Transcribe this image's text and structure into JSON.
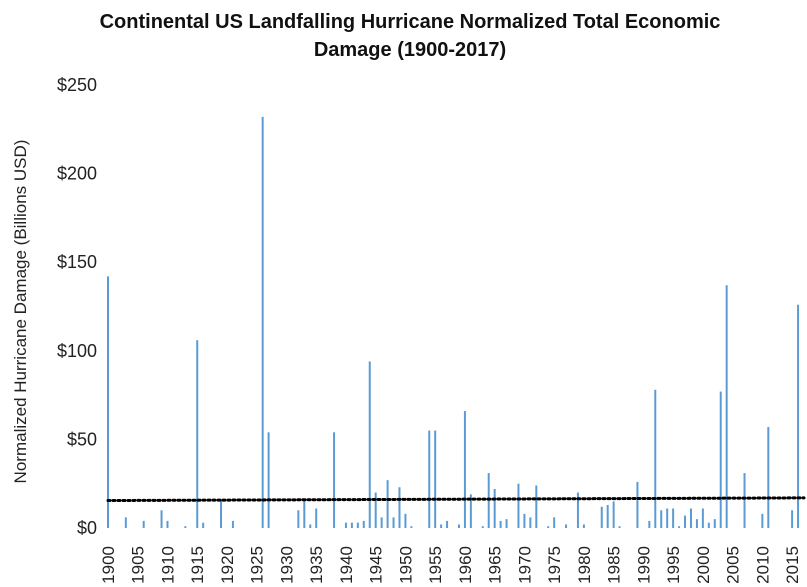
{
  "chart_data": {
    "type": "bar",
    "title_line1": "Continental US Landfalling Hurricane Normalized Total Economic",
    "title_line2": "Damage  (1900-2017)",
    "xlabel": "",
    "ylabel": "Normalized Hurricane Damage (Billions USD)",
    "ylim": [
      0,
      250
    ],
    "xlim": [
      1900,
      2017
    ],
    "yticks": [
      0,
      50,
      100,
      150,
      200,
      250
    ],
    "ytick_labels": [
      "$0",
      "$50",
      "$100",
      "$150",
      "$200",
      "$250"
    ],
    "xticks": [
      1900,
      1905,
      1910,
      1915,
      1920,
      1925,
      1930,
      1935,
      1940,
      1945,
      1950,
      1955,
      1960,
      1965,
      1970,
      1975,
      1980,
      1985,
      1990,
      1995,
      2000,
      2005,
      2010,
      2015
    ],
    "xtick_labels": [
      "1900",
      "1905",
      "1910",
      "1915",
      "1920",
      "1925",
      "1930",
      "1935",
      "1940",
      "1945",
      "1950",
      "1955",
      "1960",
      "1965",
      "1970",
      "1975",
      "1980",
      "1985",
      "1990",
      "1995",
      "2000",
      "2005",
      "2010",
      "2015"
    ],
    "bar_color": "#5b9bd5",
    "trendline": {
      "style": "dotted",
      "color": "#000000",
      "start": [
        1900,
        15.5
      ],
      "end": [
        2017,
        17
      ]
    },
    "grid": false,
    "legend": "none",
    "x": [
      1900,
      1901,
      1902,
      1903,
      1904,
      1905,
      1906,
      1907,
      1908,
      1909,
      1910,
      1911,
      1912,
      1913,
      1914,
      1915,
      1916,
      1917,
      1918,
      1919,
      1920,
      1921,
      1922,
      1923,
      1924,
      1925,
      1926,
      1927,
      1928,
      1929,
      1930,
      1931,
      1932,
      1933,
      1934,
      1935,
      1936,
      1937,
      1938,
      1939,
      1940,
      1941,
      1942,
      1943,
      1944,
      1945,
      1946,
      1947,
      1948,
      1949,
      1950,
      1951,
      1952,
      1953,
      1954,
      1955,
      1956,
      1957,
      1958,
      1959,
      1960,
      1961,
      1962,
      1963,
      1964,
      1965,
      1966,
      1967,
      1968,
      1969,
      1970,
      1971,
      1972,
      1973,
      1974,
      1975,
      1976,
      1977,
      1978,
      1979,
      1980,
      1981,
      1982,
      1983,
      1984,
      1985,
      1986,
      1987,
      1988,
      1989,
      1990,
      1991,
      1992,
      1993,
      1994,
      1995,
      1996,
      1997,
      1998,
      1999,
      2000,
      2001,
      2002,
      2003,
      2004,
      2005,
      2006,
      2007,
      2008,
      2009,
      2010,
      2011,
      2012,
      2013,
      2014,
      2015,
      2016,
      2017
    ],
    "values": [
      142,
      0,
      0,
      6,
      0,
      0,
      4,
      0,
      0,
      10,
      4,
      0,
      0,
      1,
      0,
      106,
      3,
      0,
      0,
      16,
      0,
      4,
      0,
      0,
      0,
      0,
      232,
      54,
      0,
      0,
      0,
      0,
      10,
      16,
      2,
      11,
      0,
      0,
      54,
      0,
      3,
      3,
      3,
      4,
      94,
      20,
      6,
      27,
      6,
      23,
      8,
      1,
      0,
      0,
      55,
      55,
      2,
      4,
      0,
      2,
      66,
      19,
      0,
      1,
      31,
      22,
      4,
      5,
      0,
      25,
      8,
      6,
      24,
      0,
      1,
      6,
      0,
      2,
      0,
      20,
      2,
      0,
      0,
      12,
      13,
      15,
      1,
      0,
      0,
      26,
      0,
      4,
      78,
      10,
      11,
      11,
      1,
      7,
      11,
      5,
      11,
      3,
      5,
      77,
      137,
      0,
      0,
      31,
      0,
      0,
      8,
      57,
      0,
      0,
      0,
      10,
      126,
      0
    ]
  }
}
